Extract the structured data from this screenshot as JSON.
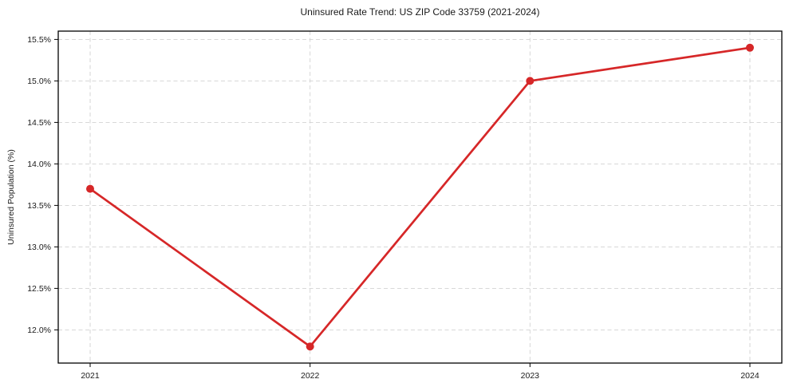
{
  "chart_data": {
    "type": "line",
    "title": "Uninsured Rate Trend: US ZIP Code 33759 (2021-2024)",
    "xlabel": "",
    "ylabel": "Uninsured Population (%)",
    "categories": [
      "2021",
      "2022",
      "2023",
      "2024"
    ],
    "values": [
      13.7,
      11.8,
      15.0,
      15.4
    ],
    "ylim": [
      11.6,
      15.6
    ],
    "yticks": [
      12.0,
      12.5,
      13.0,
      13.5,
      14.0,
      14.5,
      15.0,
      15.5
    ],
    "ytick_labels": [
      "12.0%",
      "12.5%",
      "13.0%",
      "13.5%",
      "14.0%",
      "14.5%",
      "15.0%",
      "15.5%"
    ],
    "grid": "dashed-both-axes",
    "legend_position": "none",
    "colors": {
      "line": "#d62728",
      "marker": "#d62728",
      "grid": "#d2d2d2",
      "frame": "#000000",
      "text": "#1a1a1a",
      "background": "#ffffff"
    }
  }
}
